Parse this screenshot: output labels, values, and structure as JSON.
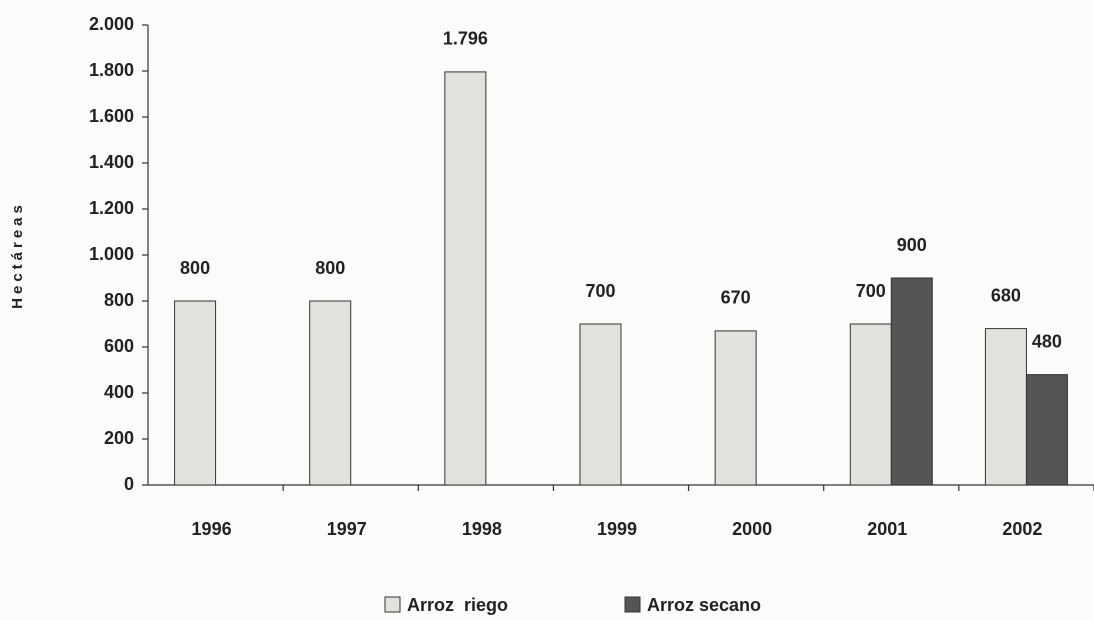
{
  "chart_data": {
    "type": "bar",
    "y_label": "Hectáreas",
    "categories": [
      "1996",
      "1997",
      "1998",
      "1999",
      "2000",
      "2001",
      "2002"
    ],
    "series": [
      {
        "name": "Arroz  riego",
        "color": "#e2e2dc",
        "values": [
          800,
          800,
          1796,
          700,
          670,
          700,
          680
        ],
        "value_labels": [
          "800",
          "800",
          "1.796",
          "700",
          "670",
          "700",
          "680"
        ]
      },
      {
        "name": "Arroz secano",
        "color": "#555555",
        "values": [
          null,
          null,
          null,
          null,
          null,
          900,
          480
        ],
        "value_labels": [
          null,
          null,
          null,
          null,
          null,
          "900",
          "480"
        ]
      }
    ],
    "ylim": [
      0,
      2000
    ],
    "yticks": [
      0,
      200,
      400,
      600,
      800,
      {
        "value": 1000,
        "label": "1.000"
      },
      {
        "value": 1200,
        "label": "1.200"
      },
      {
        "value": 1400,
        "label": "1.400"
      },
      {
        "value": 1600,
        "label": "1.600"
      },
      {
        "value": 1800,
        "label": "1.800"
      },
      {
        "value": 2000,
        "label": "2.000"
      }
    ],
    "grid": false,
    "legend": "bottom"
  }
}
